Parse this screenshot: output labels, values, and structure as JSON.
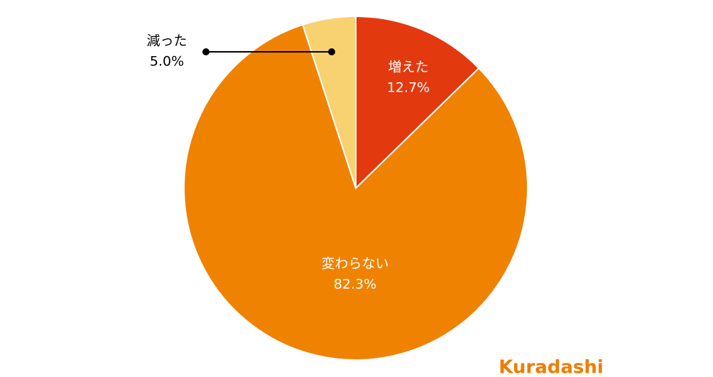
{
  "chart_data": {
    "type": "pie",
    "categories": [
      "増えた",
      "変わらない",
      "減った"
    ],
    "values": [
      12.7,
      82.3,
      5.0
    ],
    "value_labels": [
      "12.7%",
      "82.3%",
      "5.0%"
    ],
    "colors": [
      "#e2390f",
      "#ef8200",
      "#f8d171"
    ],
    "logo": "Kuradashi"
  }
}
